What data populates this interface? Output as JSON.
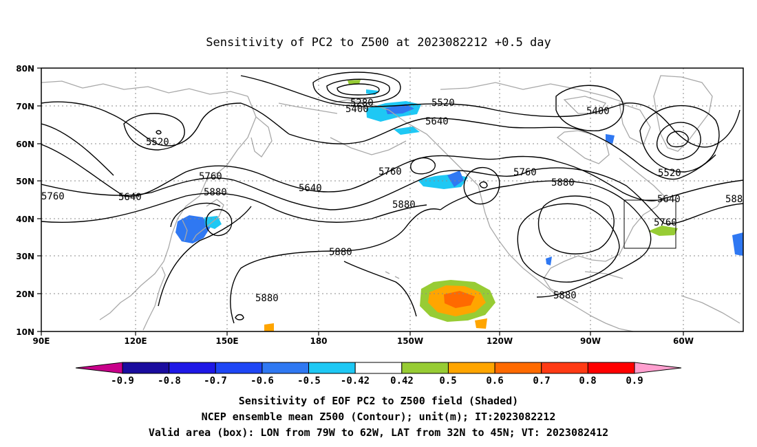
{
  "title": "Sensitivity of PC2 to Z500 at 2023082212 +0.5 day",
  "axes": {
    "lat_labels": [
      "80N",
      "70N",
      "60N",
      "50N",
      "40N",
      "30N",
      "20N",
      "10N"
    ],
    "lon_labels": [
      "90E",
      "120E",
      "150E",
      "180",
      "150W",
      "120W",
      "90W",
      "60W"
    ]
  },
  "contour_labels": [
    "5280",
    "5400",
    "5520",
    "5640",
    "5400",
    "5520",
    "5640",
    "5760",
    "5640",
    "5760",
    "5880",
    "5640",
    "5760",
    "5760",
    "5880",
    "5880",
    "5880",
    "5520",
    "5640",
    "5760",
    "5880",
    "5880",
    "5880",
    "588"
  ],
  "colorbar": {
    "labels": [
      "-0.9",
      "-0.8",
      "-0.7",
      "-0.6",
      "-0.5",
      "-0.42",
      "0.42",
      "0.5",
      "0.6",
      "0.7",
      "0.8",
      "0.9"
    ],
    "colors": [
      "#1a0c9e",
      "#1e18e6",
      "#1e46f5",
      "#2f78f2",
      "#1ec8f4",
      "#ffffff",
      "#97cc34",
      "#ffa500",
      "#ff6a00",
      "#ff3a14",
      "#ff0000"
    ],
    "low_end_color": "#c8008a",
    "high_end_color": "#ff9fcf"
  },
  "footer": {
    "line1": "Sensitivity of EOF PC2 to Z500 field (Shaded)",
    "line2": "NCEP ensemble mean Z500 (Contour); unit(m); IT:2023082212",
    "line3": "Valid area (box): LON from 79W to 62W, LAT from 32N to 45N; VT: 2023082412"
  },
  "colors": {
    "coast": "#a8a8a8",
    "contour": "#000000",
    "grid": "#888888"
  }
}
